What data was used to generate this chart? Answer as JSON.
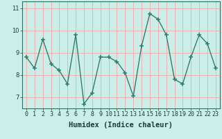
{
  "x": [
    0,
    1,
    2,
    3,
    4,
    5,
    6,
    7,
    8,
    9,
    10,
    11,
    12,
    13,
    14,
    15,
    16,
    17,
    18,
    19,
    20,
    21,
    22,
    23
  ],
  "y": [
    8.8,
    8.3,
    9.6,
    8.5,
    8.2,
    7.6,
    9.8,
    6.7,
    7.2,
    8.8,
    8.8,
    8.6,
    8.1,
    7.05,
    9.3,
    10.75,
    10.5,
    9.8,
    7.8,
    7.6,
    8.8,
    9.8,
    9.4,
    8.3
  ],
  "line_color": "#2e7d6e",
  "bg_color": "#cceee8",
  "grid_color": "#f0b0b0",
  "xlabel": "Humidex (Indice chaleur)",
  "ylim": [
    6.5,
    11.3
  ],
  "xlim": [
    -0.5,
    23.5
  ],
  "yticks": [
    7,
    8,
    9,
    10,
    11
  ],
  "xticks": [
    0,
    1,
    2,
    3,
    4,
    5,
    6,
    7,
    8,
    9,
    10,
    11,
    12,
    13,
    14,
    15,
    16,
    17,
    18,
    19,
    20,
    21,
    22,
    23
  ],
  "xtick_labels": [
    "0",
    "1",
    "2",
    "3",
    "4",
    "5",
    "6",
    "7",
    "8",
    "9",
    "10",
    "11",
    "12",
    "13",
    "14",
    "15",
    "16",
    "17",
    "18",
    "19",
    "20",
    "21",
    "22",
    "23"
  ],
  "xlabel_fontsize": 7.5,
  "tick_fontsize": 6
}
